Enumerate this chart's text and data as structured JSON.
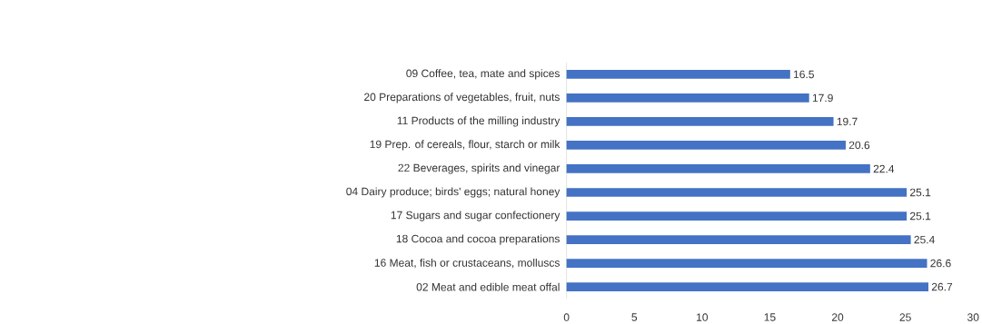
{
  "chart_data": {
    "type": "bar",
    "orientation": "horizontal",
    "categories": [
      "09 Coffee, tea, mate and spices",
      "20 Preparations of vegetables, fruit, nuts",
      "11 Products of the milling industry",
      "19 Prep. of cereals, flour, starch or milk",
      "22 Beverages, spirits and vinegar",
      "04 Dairy produce; birds' eggs; natural honey",
      "17 Sugars and sugar confectionery",
      "18 Cocoa and cocoa preparations",
      "16 Meat, fish or crustaceans, molluscs",
      "02 Meat and edible meat offal"
    ],
    "values": [
      16.5,
      17.9,
      19.7,
      20.6,
      22.4,
      25.1,
      25.1,
      25.4,
      26.6,
      26.7
    ],
    "color": "#4472c4",
    "xlim": [
      0,
      30
    ],
    "xticks": [
      0,
      5,
      10,
      15,
      20,
      25,
      30
    ],
    "data_labels": true
  }
}
